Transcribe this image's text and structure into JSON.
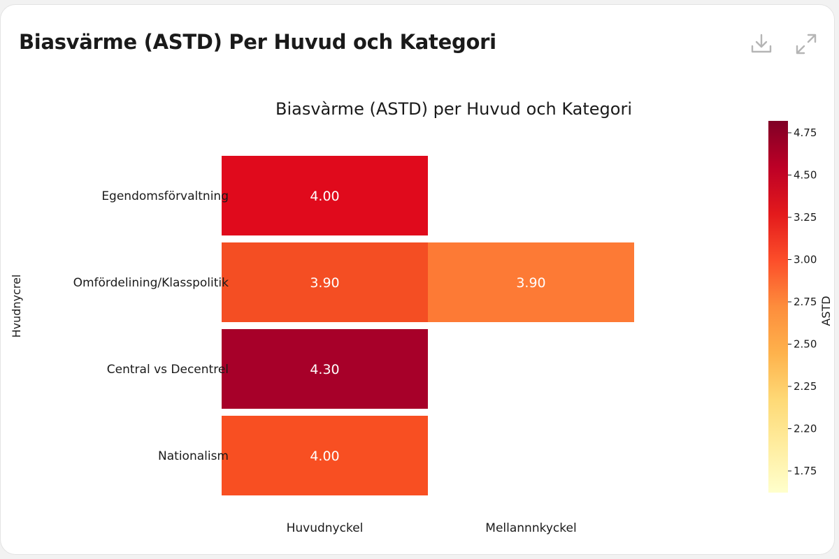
{
  "card": {
    "title": "Biasvärme (ASTD) Per Huvud och Kategori"
  },
  "toolbar": {
    "download_icon": "download-icon",
    "expand_icon": "expand-icon",
    "icon_color": "#b5b5b5"
  },
  "chart_data": {
    "type": "heatmap",
    "title": "Biasvàrme (ASTD) per Huvud och Kategori",
    "ylabel": "Hvudnycrel",
    "xlabel": "",
    "x_categories": [
      "Huvudnyckel",
      "Mellannnkyckel"
    ],
    "y_categories": [
      "Egendomsförvaltning",
      "Omfördelining/Klasspolitik",
      "Central vs Decentrel",
      "Nationalism"
    ],
    "cells": [
      {
        "row": 0,
        "col": 0,
        "value": 4.0,
        "label": "4.00",
        "color": "#e00a1c"
      },
      {
        "row": 1,
        "col": 0,
        "value": 3.9,
        "label": "3.90",
        "color": "#f44e23"
      },
      {
        "row": 1,
        "col": 1,
        "value": 3.9,
        "label": "3.90",
        "color": "#fd7a35"
      },
      {
        "row": 2,
        "col": 0,
        "value": 4.3,
        "label": "4.30",
        "color": "#a70029"
      },
      {
        "row": 3,
        "col": 0,
        "value": 4.0,
        "label": "4.00",
        "color": "#f84f22"
      }
    ],
    "colorbar": {
      "label": "ASTD",
      "ticks": [
        "4.75",
        "4.50",
        "3.25",
        "3.00",
        "2.75",
        "2.50",
        "2.25",
        "2.20",
        "1.75"
      ],
      "colors": [
        "#ffffcc",
        "#ffeda0",
        "#fed976",
        "#feb24c",
        "#fd8d3c",
        "#fc4e2a",
        "#e31a1c",
        "#bd0026",
        "#800026"
      ]
    }
  }
}
